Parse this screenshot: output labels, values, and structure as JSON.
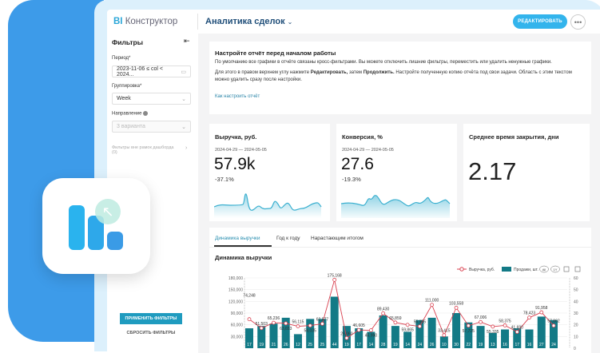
{
  "app": {
    "brand_prefix": "BI",
    "brand_name": "Конструктор",
    "report_title": "Аналитика сделок",
    "edit_label": "РЕДАКТИРОВАТЬ"
  },
  "sidebar": {
    "title": "Фильтры",
    "period_label": "Период",
    "period_value": "2023-11-06 ≤ col < 2024...",
    "grouping_label": "Группировка",
    "grouping_value": "Week",
    "direction_label": "Направление",
    "direction_value": "3 варианта",
    "outside_filters": "Фильтры вне рамок дашборда",
    "outside_count": "(0)",
    "apply_label": "ПРИМЕНИТЬ ФИЛЬТРЫ",
    "reset_label": "СБРОСИТЬ ФИЛЬТРЫ"
  },
  "info": {
    "title": "Настройте отчёт перед началом работы",
    "p1": "По умолчанию все графики в отчёте связаны кросс-фильтрами. Вы можете отключить лишние фильтры, переместить или удалить ненужные графики.",
    "p2_a": "Для этого в правом верхнем углу нажмите ",
    "p2_b": "Редактировать,",
    "p2_c": " затем ",
    "p2_d": "Продолжить.",
    "p2_e": " Настройте полученную копию отчёта под свои задачи. Область с этим текстом можно удалить сразу после настройки.",
    "link": "Как настроить отчёт"
  },
  "kpis": [
    {
      "title": "Выручка, руб.",
      "dates": "2024-04-29 — 2024-05-05",
      "value": "57.9k",
      "change": "-37.1%"
    },
    {
      "title": "Конверсия, %",
      "dates": "2024-04-29 — 2024-05-05",
      "value": "27.6",
      "change": "-19.3%"
    },
    {
      "title": "Среднее время закрытия, дни",
      "value": "2.17"
    }
  ],
  "tabs": [
    "Динамика выручки",
    "Год к году",
    "Нарастающим итогом"
  ],
  "colors": {
    "bar": "#137a86",
    "line": "#d9404f",
    "accent": "#33b4ec",
    "sparkline": "#3bb0d0"
  },
  "chart_data": {
    "type": "bar+line",
    "title": "Динамика выручки",
    "legend": {
      "placement": "top-right",
      "items": [
        "Выручка, руб.",
        "Продажи, шт."
      ]
    },
    "controls": [
      "All",
      "1Y"
    ],
    "y_left": {
      "ticks": [
        "180,000",
        "150,000",
        "120,000",
        "90,000",
        "60,000",
        "30,000"
      ],
      "range": [
        0,
        180000
      ]
    },
    "y_right": {
      "ticks": [
        "60",
        "50",
        "40",
        "30",
        "20",
        "10",
        "0"
      ],
      "range": [
        0,
        60
      ]
    },
    "series": [
      {
        "name": "Продажи, шт.",
        "type": "bar",
        "values": [
          17,
          19,
          21,
          26,
          12,
          25,
          25,
          44,
          19,
          17,
          14,
          28,
          19,
          14,
          24,
          26,
          10,
          30,
          22,
          19,
          13,
          16,
          17,
          16,
          27,
          24
        ]
      },
      {
        "name": "Выручка, руб.",
        "type": "line",
        "values": [
          74248,
          51503,
          65236,
          63653,
          56115,
          58035,
          62577,
          175168,
          26060,
          46605,
          45950,
          89430,
          65859,
          59865,
          55955,
          111000,
          33415,
          103558,
          57725,
          67006,
          55335,
          58375,
          41690,
          78423,
          91958,
          57862
        ]
      }
    ]
  }
}
